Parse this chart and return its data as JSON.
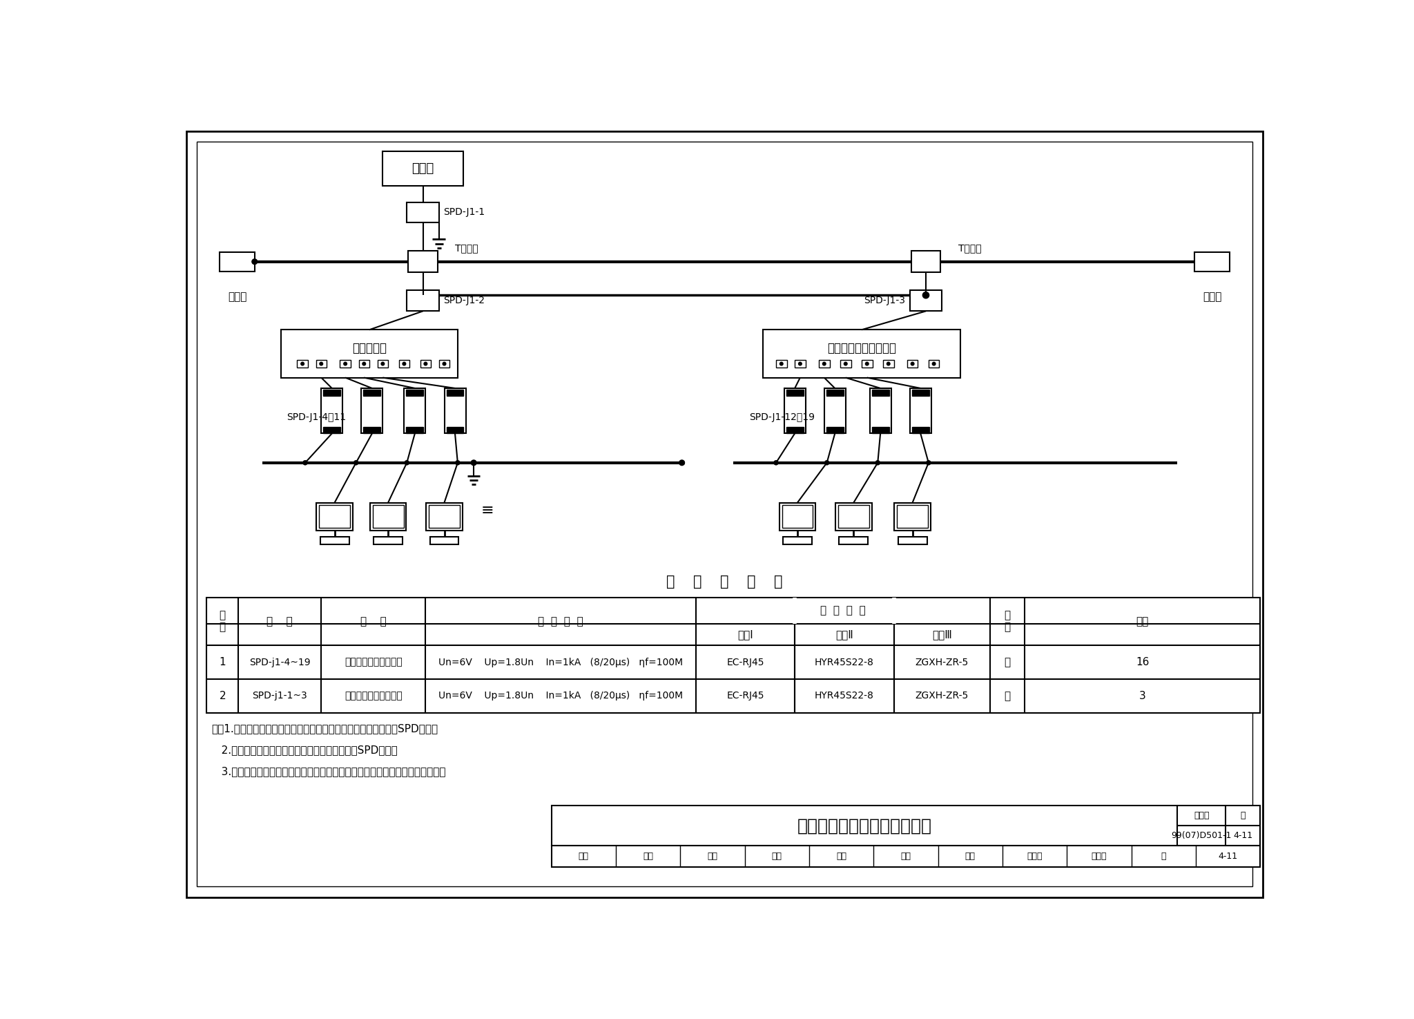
{
  "title": "计算机局域网过电压保护方式",
  "fig_number": "99(07)D501-1",
  "page": "4-11",
  "bg_color": "#ffffff",
  "table_title": "设    备    选    型    表",
  "rows": [
    {
      "no": "1",
      "code": "SPD-j1-4~19",
      "name": "计算机信号浪涌保护器",
      "req1": "Un=6V",
      "req2": "Up=1.8Un",
      "req3": "In=1kA",
      "req4": "(8/20μs)",
      "req5": "ηf=100M",
      "p1": "EC-RJ45",
      "p2": "HYR45S22-8",
      "p3": "ZGXH-ZR-5",
      "unit": "只",
      "qty": "16"
    },
    {
      "no": "2",
      "code": "SPD-j1-1~3",
      "name": "计算机信号浪涌保护器",
      "req1": "Un=6V",
      "req2": "Up=1.8Un",
      "req3": "In=1kA",
      "req4": "(8/20μs)",
      "req5": "ηf=100M",
      "p1": "EC-RJ45",
      "p2": "HYR45S22-8",
      "p3": "ZGXH-ZR-5",
      "unit": "只",
      "qty": "3"
    }
  ],
  "notes": [
    "注：1.由室内引至室外的信号线路（或室外引入室内）两端应加装SPD保护。",
    "   2.在每栋建筑物内部的信号及控制线间不必加装SPD保护。",
    "   3.安装位置及设备选型表仅供参考，具体工程中由设计人员根据实际情况选定。"
  ],
  "server_label": "服务器",
  "spd_j1_1": "SPD-J1-1",
  "t_type_left": "T型三通",
  "t_type_right": "T型三通",
  "spd_j1_2": "SPD-J1-2",
  "spd_j1_3": "SPD-J1-3",
  "terminal_left": "终端器",
  "terminal_right": "终端器",
  "hub_left": "网络集线器",
  "hub_right": "网络集线器（交换机）",
  "spd_left_label": "SPD-J1-4～11",
  "spd_right_label": "SPD-J1-12～19",
  "sign_items": [
    "审核",
    "熊江",
    "戴江",
    "校对",
    "陈勇",
    "陈励",
    "设计",
    "刘兴顺",
    "祝赞饭",
    "页",
    "4-11"
  ]
}
